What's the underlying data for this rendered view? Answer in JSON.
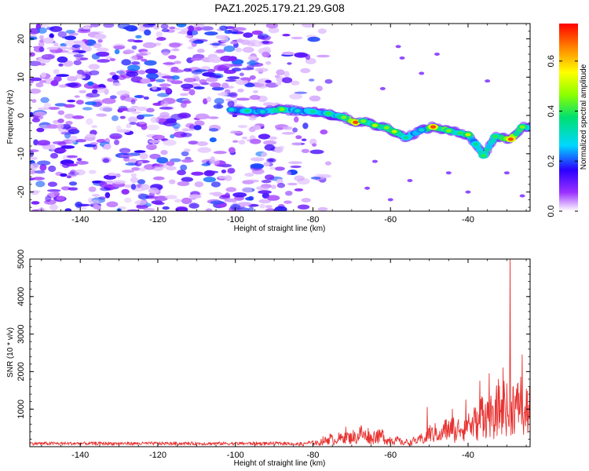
{
  "title": "PAZ1.2025.179.21.29.G08",
  "chart_data": [
    {
      "type": "heatmap",
      "name": "spectrogram",
      "xlabel": "Height of straight line (km)",
      "ylabel": "Frequency (Hz)",
      "xlim": [
        -153,
        -24
      ],
      "ylim": [
        -25,
        24
      ],
      "xticks": [
        -140,
        -120,
        -100,
        -80,
        -60,
        -40
      ],
      "yticks": [
        -20,
        -10,
        0,
        10,
        20
      ],
      "colorbar": {
        "label": "Normalized spectral amplitude",
        "range": [
          0.0,
          0.75
        ],
        "ticks": [
          0.0,
          0.2,
          0.4,
          0.6
        ],
        "colormap": "rainbow (white-violet-blue-cyan-green-yellow-orange-red)"
      },
      "noise": {
        "x_range": [
          -153,
          -80
        ],
        "y_range": [
          -25,
          24
        ],
        "amplitude_range": [
          0.02,
          0.22
        ]
      },
      "ridge": [
        {
          "x": -101,
          "y": 1.5,
          "amp": 0.3
        },
        {
          "x": -97,
          "y": 1.2,
          "amp": 0.35
        },
        {
          "x": -93,
          "y": 1.0,
          "amp": 0.3
        },
        {
          "x": -88,
          "y": 1.6,
          "amp": 0.45
        },
        {
          "x": -84,
          "y": 1.2,
          "amp": 0.3
        },
        {
          "x": -80,
          "y": 1.0,
          "amp": 0.35
        },
        {
          "x": -76,
          "y": 0.5,
          "amp": 0.4
        },
        {
          "x": -72,
          "y": -0.5,
          "amp": 0.45
        },
        {
          "x": -69,
          "y": -1.8,
          "amp": 0.7
        },
        {
          "x": -67,
          "y": -1.5,
          "amp": 0.45
        },
        {
          "x": -64,
          "y": -2.6,
          "amp": 0.5
        },
        {
          "x": -61,
          "y": -3.2,
          "amp": 0.45
        },
        {
          "x": -59,
          "y": -4.2,
          "amp": 0.5
        },
        {
          "x": -56,
          "y": -5.8,
          "amp": 0.35
        },
        {
          "x": -52,
          "y": -3.8,
          "amp": 0.3
        },
        {
          "x": -49,
          "y": -3.0,
          "amp": 0.7
        },
        {
          "x": -45,
          "y": -4.0,
          "amp": 0.45
        },
        {
          "x": -42,
          "y": -4.6,
          "amp": 0.4
        },
        {
          "x": -40,
          "y": -5.0,
          "amp": 0.5
        },
        {
          "x": -38,
          "y": -7.5,
          "amp": 0.35
        },
        {
          "x": -36,
          "y": -10.5,
          "amp": 0.4
        },
        {
          "x": -33,
          "y": -5.5,
          "amp": 0.4
        },
        {
          "x": -29,
          "y": -6.2,
          "amp": 0.7
        },
        {
          "x": -26,
          "y": -3.0,
          "amp": 0.45
        }
      ]
    },
    {
      "type": "line",
      "name": "snr",
      "xlabel": "Height of straight line (km)",
      "ylabel": "SNR (10 * v/v)",
      "xlim": [
        -153,
        -24
      ],
      "ylim": [
        0,
        5000
      ],
      "xticks": [
        -140,
        -120,
        -100,
        -80,
        -60,
        -40
      ],
      "yticks": [
        1000,
        2000,
        3000,
        4000,
        5000
      ],
      "color": "#e8312f",
      "envelope": [
        {
          "x": -153,
          "y": 110
        },
        {
          "x": -100,
          "y": 110
        },
        {
          "x": -85,
          "y": 140
        },
        {
          "x": -80,
          "y": 200
        },
        {
          "x": -75,
          "y": 420
        },
        {
          "x": -70,
          "y": 600
        },
        {
          "x": -66,
          "y": 650
        },
        {
          "x": -62,
          "y": 550
        },
        {
          "x": -58,
          "y": 280
        },
        {
          "x": -54,
          "y": 260
        },
        {
          "x": -50,
          "y": 650
        },
        {
          "x": -45,
          "y": 950
        },
        {
          "x": -40,
          "y": 1250
        },
        {
          "x": -36,
          "y": 1700
        },
        {
          "x": -32,
          "y": 2000
        },
        {
          "x": -29,
          "y": 2400
        },
        {
          "x": -26,
          "y": 2100
        },
        {
          "x": -24,
          "y": 2300
        }
      ],
      "peaks": [
        {
          "x": -29.2,
          "y": 5000
        },
        {
          "x": -26.0,
          "y": 2450
        },
        {
          "x": -31.0,
          "y": 2100
        },
        {
          "x": -34.5,
          "y": 1950
        },
        {
          "x": -37.0,
          "y": 1750
        },
        {
          "x": -40.5,
          "y": 1250
        },
        {
          "x": -44.0,
          "y": 1000
        },
        {
          "x": -50.5,
          "y": 1050
        }
      ]
    }
  ]
}
